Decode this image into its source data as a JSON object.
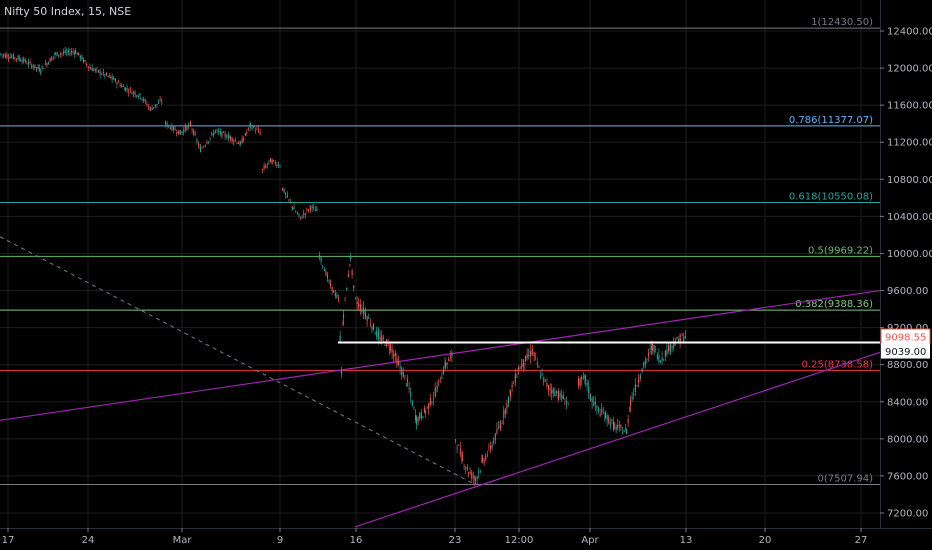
{
  "header": {
    "title": "Nifty 50 Index, 15, NSE"
  },
  "colors": {
    "background": "#000000",
    "up_candle": "#26a69a",
    "down_candle": "#ef5350",
    "trendline": "#9c27b0",
    "axis_text": "#b2b5be",
    "grid": "#1c1c1c"
  },
  "chart_data": {
    "type": "candlestick",
    "title": "Nifty 50 Index, 15, NSE",
    "y_axis": {
      "position": "right",
      "ticks": [
        12400,
        12000,
        11600,
        11200,
        10800,
        10400,
        10000,
        9600,
        9200,
        8800,
        8400,
        8000,
        7600,
        7200
      ],
      "tick_labels": [
        "12400.00",
        "12000.00",
        "11600.00",
        "11200.00",
        "10800.00",
        "10400.00",
        "10000.00",
        "9600.00",
        "9200.00",
        "8800.00",
        "8400.00",
        "8000.00",
        "7600.00",
        "7200.00"
      ],
      "range": [
        7050,
        12700
      ]
    },
    "x_axis": {
      "tick_labels": [
        "17",
        "24",
        "Mar",
        "9",
        "16",
        "23",
        "12:00",
        "Apr",
        "13",
        "20",
        "27"
      ]
    },
    "fib_levels": [
      {
        "ratio": "1",
        "value": 12430.5,
        "label": "1(12430.50)",
        "color": "#787b86"
      },
      {
        "ratio": "0.786",
        "value": 11377.07,
        "label": "0.786(11377.07)",
        "color": "#64b5f6"
      },
      {
        "ratio": "0.618",
        "value": 10550.08,
        "label": "0.618(10550.08)",
        "color": "#26a69a"
      },
      {
        "ratio": "0.5",
        "value": 9969.22,
        "label": "0.5(9969.22)",
        "color": "#66bb6a"
      },
      {
        "ratio": "0.382",
        "value": 9388.36,
        "label": "0.382(9388.36)",
        "color": "#81c784"
      },
      {
        "ratio": "0.25",
        "value": 8738.58,
        "label": "0.25(8738.58)",
        "color": "#f23645"
      },
      {
        "ratio": "0",
        "value": 7507.94,
        "label": "0(7507.94)",
        "color": "#787b86"
      }
    ],
    "horizontal_line": {
      "value": 9039.0,
      "label": "9039.00",
      "color": "#ffffff"
    },
    "last_price": {
      "value": 9098.55,
      "label": "9098.55",
      "color": "#ef5350"
    },
    "trendlines": [
      {
        "from": [
          0,
          8200
        ],
        "to": [
          880,
          9600
        ]
      },
      {
        "from": [
          355,
          7050
        ],
        "to": [
          932,
          9120
        ]
      }
    ],
    "dashed_line": {
      "from": [
        0,
        10180
      ],
      "to": [
        475,
        7507.94
      ],
      "color": "#787b86"
    },
    "price_path": [
      [
        0,
        12150
      ],
      [
        20,
        12100
      ],
      [
        40,
        11980
      ],
      [
        55,
        12150
      ],
      [
        75,
        12180
      ],
      [
        90,
        12000
      ],
      [
        110,
        11900
      ],
      [
        125,
        11780
      ],
      [
        140,
        11700
      ],
      [
        150,
        11560
      ],
      [
        162,
        11650
      ],
      [
        165,
        11400
      ],
      [
        180,
        11300
      ],
      [
        190,
        11390
      ],
      [
        200,
        11120
      ],
      [
        215,
        11320
      ],
      [
        230,
        11250
      ],
      [
        240,
        11180
      ],
      [
        250,
        11380
      ],
      [
        260,
        11300
      ],
      [
        262,
        10900
      ],
      [
        270,
        11000
      ],
      [
        280,
        10950
      ],
      [
        282,
        10700
      ],
      [
        292,
        10500
      ],
      [
        300,
        10380
      ],
      [
        310,
        10500
      ],
      [
        318,
        10450
      ],
      [
        319,
        9980
      ],
      [
        330,
        9650
      ],
      [
        338,
        9500
      ],
      [
        341,
        8730
      ],
      [
        343,
        9350
      ],
      [
        350,
        9950
      ],
      [
        354,
        9550
      ],
      [
        355,
        9500
      ],
      [
        365,
        9350
      ],
      [
        378,
        9100
      ],
      [
        390,
        9000
      ],
      [
        398,
        8800
      ],
      [
        407,
        8600
      ],
      [
        416,
        8200
      ],
      [
        425,
        8300
      ],
      [
        435,
        8500
      ],
      [
        445,
        8800
      ],
      [
        452,
        8900
      ],
      [
        455,
        8000
      ],
      [
        462,
        7780
      ],
      [
        468,
        7650
      ],
      [
        475,
        7560
      ],
      [
        482,
        7750
      ],
      [
        490,
        7900
      ],
      [
        500,
        8150
      ],
      [
        510,
        8500
      ],
      [
        518,
        8750
      ],
      [
        525,
        8850
      ],
      [
        532,
        8950
      ],
      [
        540,
        8700
      ],
      [
        548,
        8550
      ],
      [
        558,
        8480
      ],
      [
        568,
        8380
      ],
      [
        578,
        8600
      ],
      [
        585,
        8650
      ],
      [
        590,
        8450
      ],
      [
        598,
        8300
      ],
      [
        605,
        8250
      ],
      [
        614,
        8130
      ],
      [
        626,
        8080
      ],
      [
        630,
        8400
      ],
      [
        640,
        8700
      ],
      [
        648,
        8900
      ],
      [
        652,
        9000
      ],
      [
        660,
        8850
      ],
      [
        670,
        9000
      ],
      [
        680,
        9080
      ],
      [
        686,
        9098.55
      ]
    ],
    "segment_starts": [
      0,
      11,
      20,
      23,
      28,
      35,
      46,
      61
    ]
  }
}
